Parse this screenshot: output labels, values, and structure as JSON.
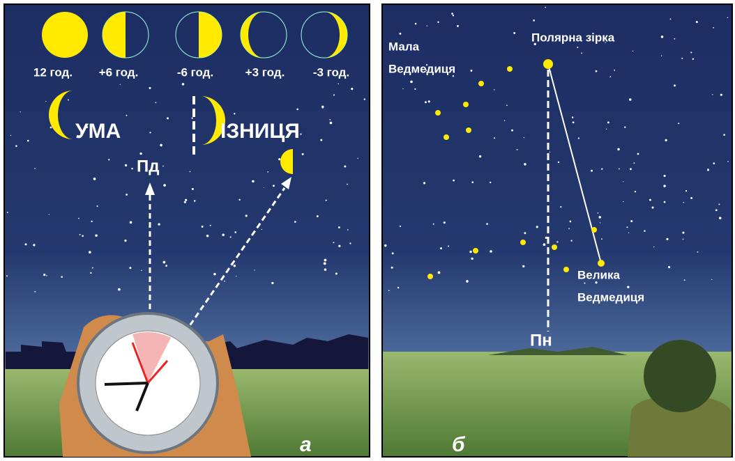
{
  "left_panel": {
    "phases": [
      "12 год.",
      "+6 год.",
      "-6 год.",
      "+3 год.",
      "-3 год."
    ],
    "words": [
      "УМА",
      "ІЗНИЦЯ"
    ],
    "direction": "Пд",
    "label": "а"
  },
  "right_panel": {
    "little_dipper": [
      "Мала",
      "Ведмедиця"
    ],
    "polaris": "Полярна зірка",
    "big_dipper": [
      "Велика",
      "Ведмедиця"
    ],
    "direction": "Пн",
    "label": "б"
  }
}
